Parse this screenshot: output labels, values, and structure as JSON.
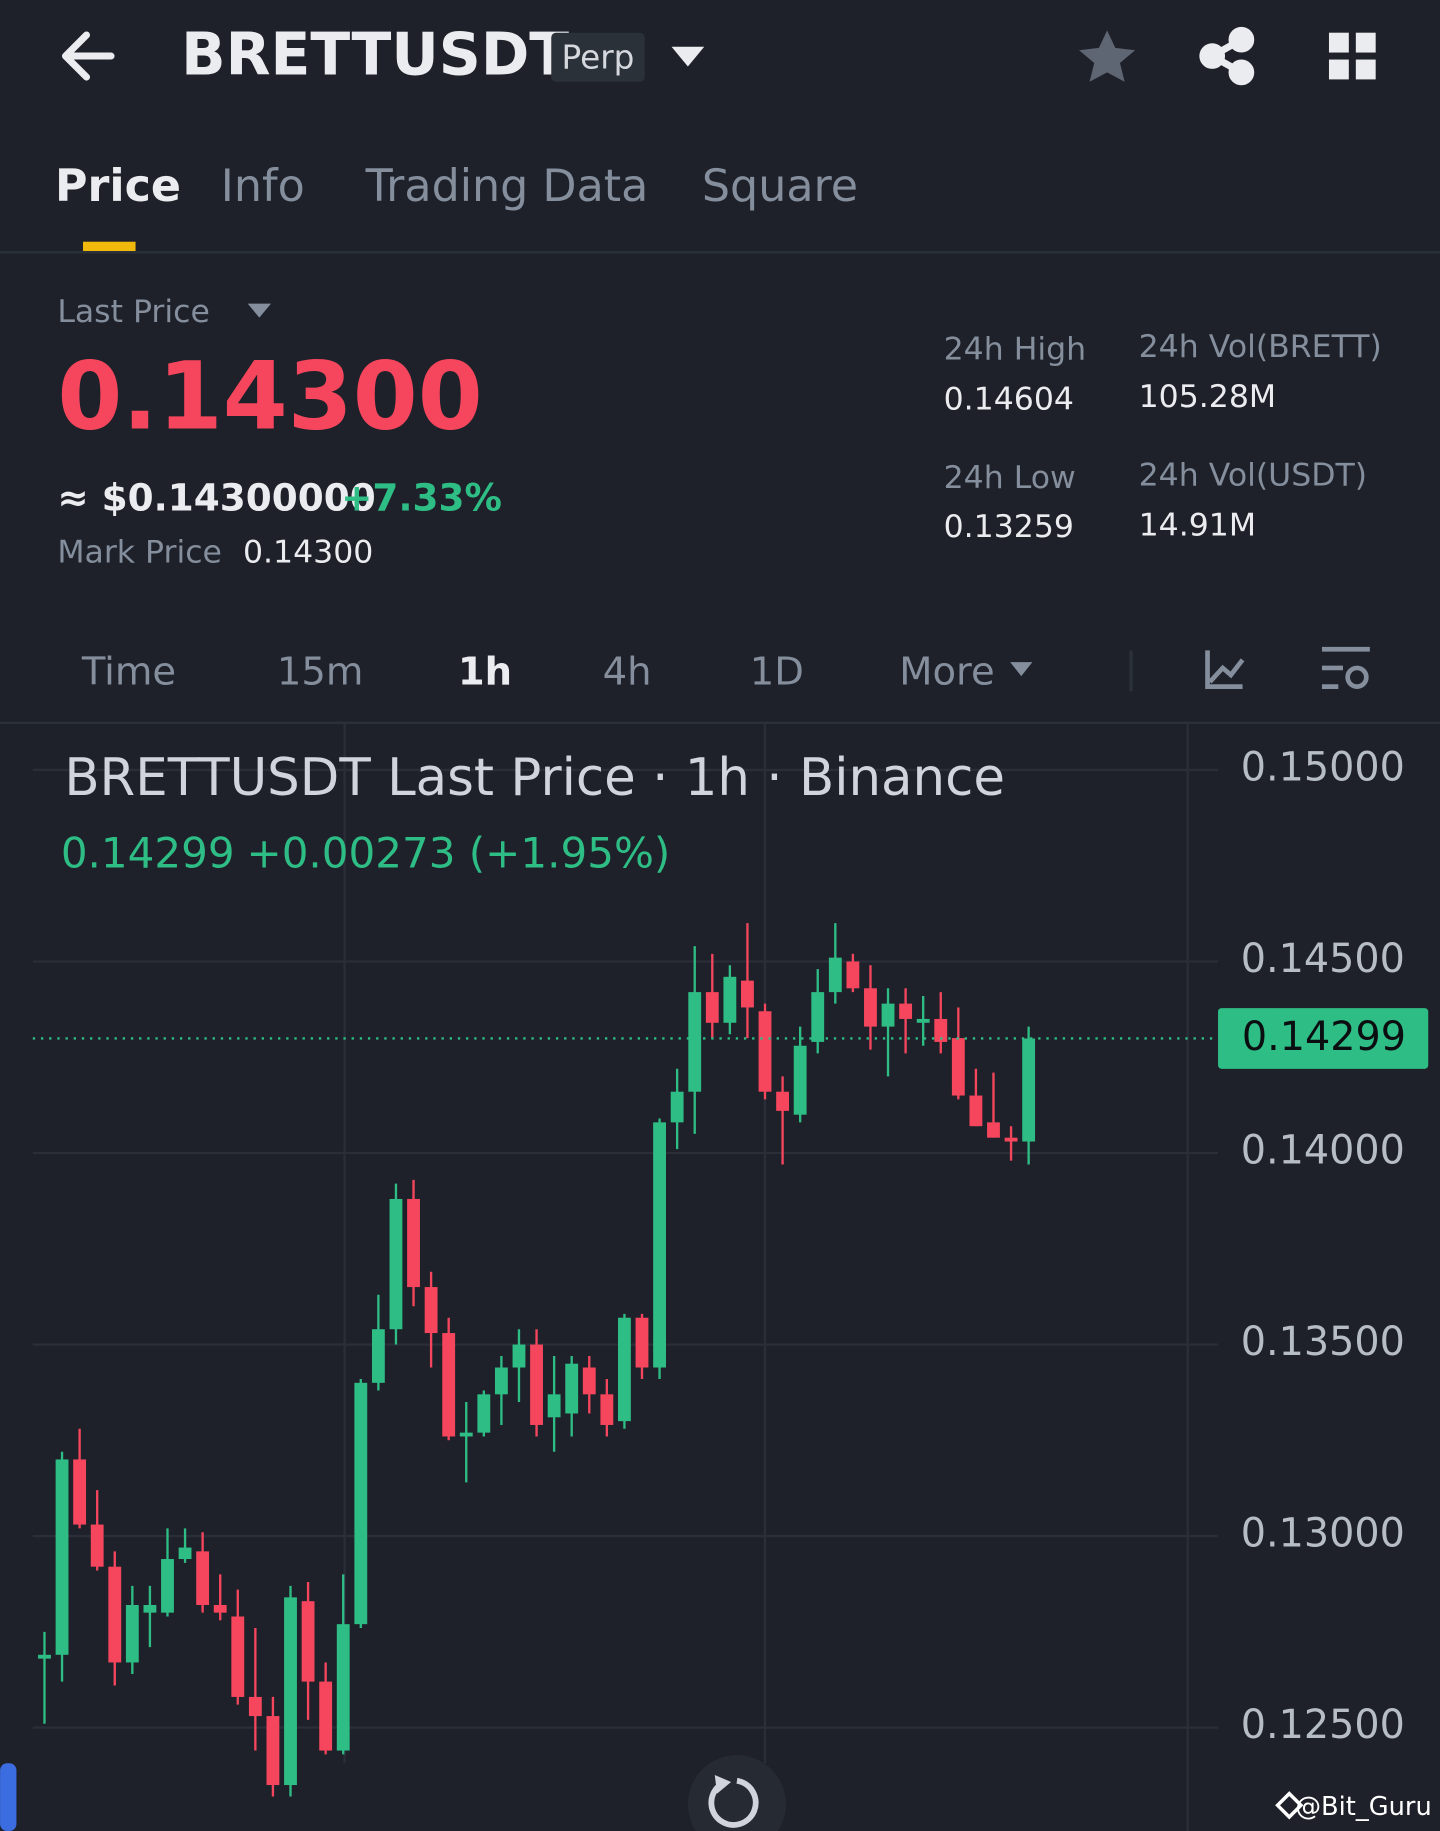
{
  "header": {
    "symbol": "BRETTUSDT",
    "badge": "Perp"
  },
  "tabs": [
    "Price",
    "Info",
    "Trading Data",
    "Square"
  ],
  "price": {
    "label": "Last Price",
    "value": "0.14300",
    "approx": "≈ $0.14300000",
    "change": "+7.33%",
    "mark_label": "Mark Price",
    "mark_value": "0.14300"
  },
  "stats": [
    {
      "label": "24h High",
      "value": "0.14604"
    },
    {
      "label": "24h Vol(BRETT)",
      "value": "105.28M"
    },
    {
      "label": "24h Low",
      "value": "0.13259"
    },
    {
      "label": "24h Vol(USDT)",
      "value": "14.91M"
    }
  ],
  "intervals": [
    "Time",
    "15m",
    "1h",
    "4h",
    "1D",
    "More"
  ],
  "watermark": "@Bit_Guru",
  "chart_data": {
    "type": "candlestick",
    "title": "BRETTUSDT Last Price · 1h · Binance",
    "legend_price": "0.14299",
    "legend_change": "+0.00273 (+1.95%)",
    "up_color": "#2ebd85",
    "down_color": "#f6465d",
    "open": [
      0.1268,
      0.1269,
      0.132,
      0.1303,
      0.1292,
      0.1267,
      0.128,
      0.128,
      0.1294,
      0.1296,
      0.1282,
      0.1279,
      0.1258,
      0.1253,
      0.1235,
      0.1283,
      0.1262,
      0.1244,
      0.1277,
      0.134,
      0.1354,
      0.1388,
      0.1365,
      0.1353,
      0.1326,
      0.1327,
      0.1337,
      0.1344,
      0.135,
      0.1331,
      0.1332,
      0.1344,
      0.1337,
      0.133,
      0.1357,
      0.1344,
      0.1408,
      0.1416,
      0.1442,
      0.1434,
      0.1445,
      0.1437,
      0.1416,
      0.141,
      0.1429,
      0.1442,
      0.145,
      0.1443,
      0.1433,
      0.1439,
      0.1434,
      0.1435,
      0.143,
      0.1415,
      0.1408,
      0.1404,
      0.1403
    ],
    "high": [
      0.1275,
      0.1322,
      0.1328,
      0.1312,
      0.1296,
      0.1287,
      0.1287,
      0.1302,
      0.1302,
      0.1301,
      0.129,
      0.1286,
      0.1276,
      0.1258,
      0.1287,
      0.1288,
      0.1267,
      0.129,
      0.1341,
      0.1363,
      0.1392,
      0.1393,
      0.1369,
      0.1357,
      0.1335,
      0.1338,
      0.1347,
      0.1354,
      0.1354,
      0.1347,
      0.1347,
      0.1347,
      0.1341,
      0.1358,
      0.1358,
      0.1409,
      0.1422,
      0.1454,
      0.1452,
      0.1449,
      0.146,
      0.1439,
      0.142,
      0.1433,
      0.1448,
      0.146,
      0.1452,
      0.1449,
      0.1443,
      0.1443,
      0.1441,
      0.1442,
      0.1438,
      0.1422,
      0.1421,
      0.1407,
      0.1433
    ],
    "low": [
      0.1251,
      0.1262,
      0.1302,
      0.1291,
      0.1261,
      0.1264,
      0.1271,
      0.1279,
      0.1293,
      0.128,
      0.1278,
      0.1256,
      0.1244,
      0.1232,
      0.1232,
      0.1252,
      0.1243,
      0.1243,
      0.1276,
      0.1338,
      0.135,
      0.136,
      0.1344,
      0.1325,
      0.1314,
      0.1326,
      0.1329,
      0.1335,
      0.1326,
      0.1322,
      0.1326,
      0.1332,
      0.1326,
      0.1328,
      0.1341,
      0.1341,
      0.1401,
      0.1405,
      0.143,
      0.1431,
      0.143,
      0.1414,
      0.1397,
      0.1408,
      0.1426,
      0.1439,
      0.1442,
      0.1427,
      0.142,
      0.1426,
      0.1428,
      0.1426,
      0.1414,
      0.1407,
      0.1404,
      0.1398,
      0.1397
    ],
    "close": [
      0.1269,
      0.132,
      0.1303,
      0.1292,
      0.1267,
      0.1282,
      0.1282,
      0.1294,
      0.1297,
      0.1282,
      0.128,
      0.1258,
      0.1253,
      0.1235,
      0.1284,
      0.1262,
      0.1244,
      0.1277,
      0.134,
      0.1354,
      0.1388,
      0.1365,
      0.1353,
      0.1326,
      0.1327,
      0.1337,
      0.1344,
      0.135,
      0.1329,
      0.1337,
      0.1345,
      0.1337,
      0.1329,
      0.1357,
      0.1344,
      0.1408,
      0.1416,
      0.1442,
      0.1434,
      0.1446,
      0.1438,
      0.1416,
      0.1411,
      0.1428,
      0.1442,
      0.1451,
      0.1443,
      0.1433,
      0.1439,
      0.1435,
      0.1435,
      0.1429,
      0.1415,
      0.1407,
      0.1404,
      0.1403,
      0.14299
    ],
    "last_value": 0.14299,
    "last_color": "#2ebd85",
    "ylim": [
      0.1223,
      0.1512
    ],
    "yticks": [
      {
        "value": 0.15,
        "label": "0.15000"
      },
      {
        "value": 0.145,
        "label": "0.14500"
      },
      {
        "value": 0.14,
        "label": "0.14000"
      },
      {
        "value": 0.135,
        "label": "0.13500"
      },
      {
        "value": 0.13,
        "label": "0.13000"
      },
      {
        "value": 0.125,
        "label": "0.12500"
      }
    ],
    "grid": true
  }
}
